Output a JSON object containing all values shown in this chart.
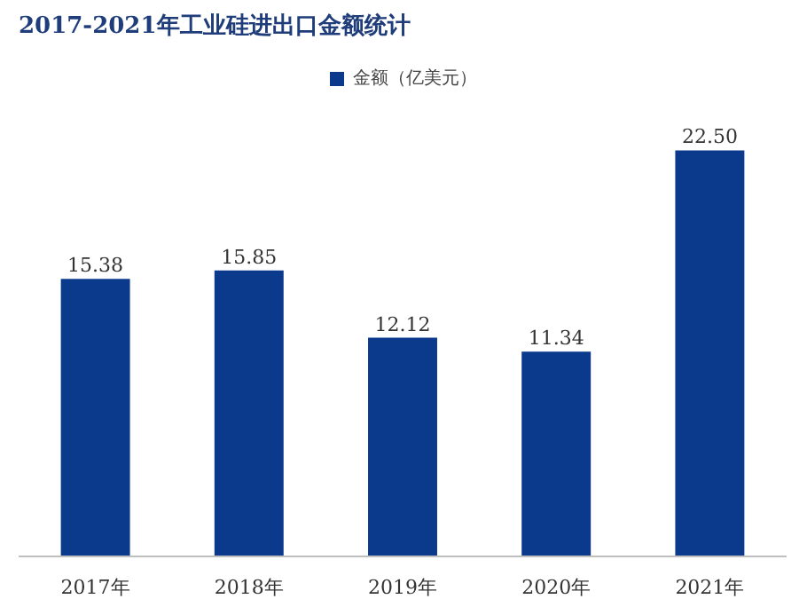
{
  "chart_data": {
    "type": "bar",
    "title": "2017-2021年工业硅进出口金额统计",
    "categories": [
      "2017年",
      "2018年",
      "2019年",
      "2020年",
      "2021年"
    ],
    "series": [
      {
        "name": "金额（亿美元）",
        "color": "#0b3a8c",
        "values": [
          15.38,
          15.85,
          12.12,
          11.34,
          22.5
        ],
        "value_labels": [
          "15.38",
          "15.85",
          "12.12",
          "11.34",
          "22.50"
        ]
      }
    ],
    "legend": "top"
  }
}
